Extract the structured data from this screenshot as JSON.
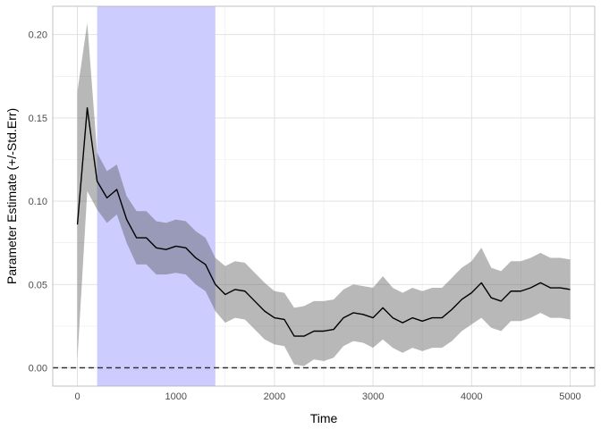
{
  "chart_data": {
    "type": "line",
    "title": "",
    "xlabel": "Time",
    "ylabel": "Parameter Estimate (+/-Std.Err)",
    "xlim": [
      -250,
      5250
    ],
    "ylim": [
      -0.011,
      0.217
    ],
    "x_ticks": [
      0,
      1000,
      2000,
      3000,
      4000,
      5000
    ],
    "x_tick_labels": [
      "0",
      "1000",
      "2000",
      "3000",
      "4000",
      "5000"
    ],
    "y_ticks": [
      0.0,
      0.05,
      0.1,
      0.15,
      0.2
    ],
    "y_tick_labels": [
      "0.00",
      "0.05",
      "0.10",
      "0.15",
      "0.20"
    ],
    "grid": true,
    "legend": "none",
    "highlight_band": {
      "x_start": 200,
      "x_end": 1400,
      "color": "#ccccff"
    },
    "reference_line": {
      "y": 0.0,
      "style": "dashed",
      "color": "#333333"
    },
    "ribbon_color": "#b3b3b3",
    "line_color": "#000000",
    "series": [
      {
        "x": [
          0,
          100,
          200,
          300,
          400,
          500,
          600,
          700,
          800,
          900,
          1000,
          1100,
          1200,
          1300,
          1400,
          1500,
          1600,
          1700,
          1800,
          1900,
          2000,
          2100,
          2200,
          2300,
          2400,
          2500,
          2600,
          2700,
          2800,
          2900,
          3000,
          3100,
          3200,
          3300,
          3400,
          3500,
          3600,
          3700,
          3800,
          3900,
          4000,
          4100,
          4200,
          4300,
          4400,
          4500,
          4600,
          4700,
          4800,
          4900,
          5000
        ],
        "y": [
          0.086,
          0.156,
          0.112,
          0.102,
          0.107,
          0.089,
          0.078,
          0.078,
          0.072,
          0.071,
          0.073,
          0.072,
          0.066,
          0.062,
          0.05,
          0.044,
          0.047,
          0.046,
          0.04,
          0.034,
          0.03,
          0.029,
          0.019,
          0.019,
          0.022,
          0.022,
          0.023,
          0.03,
          0.033,
          0.032,
          0.03,
          0.036,
          0.03,
          0.027,
          0.03,
          0.028,
          0.03,
          0.03,
          0.035,
          0.041,
          0.045,
          0.051,
          0.042,
          0.04,
          0.046,
          0.046,
          0.048,
          0.051,
          0.048,
          0.048,
          0.047
        ],
        "lower": [
          0.005,
          0.106,
          0.095,
          0.087,
          0.092,
          0.075,
          0.062,
          0.062,
          0.056,
          0.056,
          0.057,
          0.056,
          0.05,
          0.046,
          0.034,
          0.027,
          0.03,
          0.029,
          0.023,
          0.017,
          0.014,
          0.013,
          0.002,
          0.001,
          0.005,
          0.004,
          0.006,
          0.013,
          0.016,
          0.015,
          0.012,
          0.017,
          0.012,
          0.009,
          0.012,
          0.01,
          0.012,
          0.012,
          0.016,
          0.022,
          0.026,
          0.03,
          0.024,
          0.022,
          0.028,
          0.028,
          0.03,
          0.033,
          0.03,
          0.03,
          0.029
        ],
        "upper": [
          0.166,
          0.207,
          0.129,
          0.118,
          0.122,
          0.103,
          0.094,
          0.094,
          0.088,
          0.087,
          0.089,
          0.088,
          0.082,
          0.078,
          0.066,
          0.061,
          0.064,
          0.063,
          0.057,
          0.051,
          0.046,
          0.045,
          0.036,
          0.037,
          0.04,
          0.04,
          0.041,
          0.047,
          0.05,
          0.049,
          0.048,
          0.055,
          0.048,
          0.045,
          0.048,
          0.046,
          0.048,
          0.048,
          0.054,
          0.06,
          0.064,
          0.072,
          0.06,
          0.058,
          0.064,
          0.064,
          0.066,
          0.069,
          0.066,
          0.066,
          0.065
        ]
      }
    ]
  }
}
